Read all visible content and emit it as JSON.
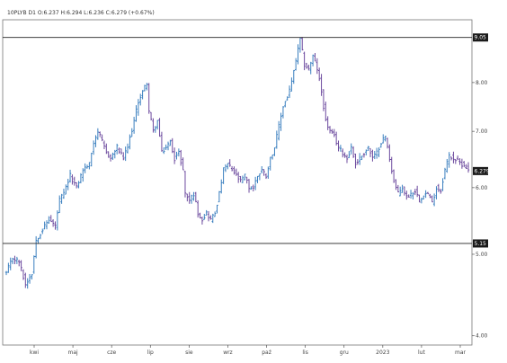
{
  "ohlc_label": "10PLYB D1 O:6.237 H:6.294 L:6.236 C:6.279 (+0.67%)",
  "colors": {
    "up": "#3a7fbf",
    "down": "#6c4a9e",
    "tag_bg": "#1a1a1a",
    "axis": "#555555"
  },
  "chart_data": {
    "type": "ohlc",
    "title": "",
    "xlabel": "",
    "ylabel": "",
    "scale": "log",
    "ylim": [
      3.9,
      9.5
    ],
    "y_ticks": [
      {
        "value": 4.0,
        "label": "4.00"
      },
      {
        "value": 5.0,
        "label": "5.00"
      },
      {
        "value": 6.0,
        "label": "6.00"
      },
      {
        "value": 7.0,
        "label": "7.00"
      },
      {
        "value": 8.0,
        "label": "8.00"
      }
    ],
    "x_ticks": [
      "kwi",
      "maj",
      "cze",
      "lip",
      "sie",
      "wrz",
      "paź",
      "lis",
      "gru",
      "2023",
      "lut",
      "mar"
    ],
    "horizontal_lines": [
      {
        "value": 9.05,
        "label": "9.05"
      },
      {
        "value": 5.15,
        "label": "5.15"
      }
    ],
    "last_price": {
      "value": 6.279,
      "label": "6.279"
    },
    "grid": false,
    "legend": "none",
    "series": [
      {
        "close_path": [
          [
            0,
            4.75
          ],
          [
            3,
            4.95
          ],
          [
            6,
            4.9
          ],
          [
            9,
            4.6
          ],
          [
            12,
            4.75
          ],
          [
            14,
            5.2
          ],
          [
            17,
            5.35
          ],
          [
            20,
            5.5
          ],
          [
            23,
            5.4
          ],
          [
            25,
            5.8
          ],
          [
            27,
            5.9
          ],
          [
            30,
            6.2
          ],
          [
            33,
            6.0
          ],
          [
            36,
            6.3
          ],
          [
            39,
            6.4
          ],
          [
            41,
            6.8
          ],
          [
            43,
            7.0
          ],
          [
            45,
            6.8
          ],
          [
            47,
            6.6
          ],
          [
            49,
            6.5
          ],
          [
            52,
            6.7
          ],
          [
            55,
            6.5
          ],
          [
            57,
            6.7
          ],
          [
            60,
            7.2
          ],
          [
            62,
            7.6
          ],
          [
            64,
            7.8
          ],
          [
            66,
            8.0
          ],
          [
            67,
            7.4
          ],
          [
            69,
            7.0
          ],
          [
            71,
            7.2
          ],
          [
            73,
            6.6
          ],
          [
            75,
            6.7
          ],
          [
            77,
            6.8
          ],
          [
            79,
            6.5
          ],
          [
            81,
            6.6
          ],
          [
            83,
            6.3
          ],
          [
            84,
            5.9
          ],
          [
            86,
            5.8
          ],
          [
            88,
            5.9
          ],
          [
            90,
            5.6
          ],
          [
            92,
            5.5
          ],
          [
            94,
            5.6
          ],
          [
            96,
            5.5
          ],
          [
            98,
            5.6
          ],
          [
            100,
            5.9
          ],
          [
            102,
            6.3
          ],
          [
            104,
            6.4
          ],
          [
            106,
            6.3
          ],
          [
            108,
            6.2
          ],
          [
            110,
            6.1
          ],
          [
            112,
            6.2
          ],
          [
            114,
            6.0
          ],
          [
            116,
            6.0
          ],
          [
            118,
            6.2
          ],
          [
            120,
            6.3
          ],
          [
            122,
            6.2
          ],
          [
            124,
            6.5
          ],
          [
            126,
            6.7
          ],
          [
            128,
            7.1
          ],
          [
            130,
            7.5
          ],
          [
            132,
            7.7
          ],
          [
            134,
            8.0
          ],
          [
            136,
            8.5
          ],
          [
            138,
            9.0
          ],
          [
            140,
            8.4
          ],
          [
            142,
            8.3
          ],
          [
            144,
            8.6
          ],
          [
            146,
            8.3
          ],
          [
            148,
            7.8
          ],
          [
            150,
            7.2
          ],
          [
            152,
            7.0
          ],
          [
            154,
            6.9
          ],
          [
            156,
            6.7
          ],
          [
            158,
            6.6
          ],
          [
            160,
            6.5
          ],
          [
            162,
            6.7
          ],
          [
            164,
            6.4
          ],
          [
            166,
            6.5
          ],
          [
            168,
            6.6
          ],
          [
            170,
            6.7
          ],
          [
            172,
            6.5
          ],
          [
            174,
            6.6
          ],
          [
            176,
            6.8
          ],
          [
            178,
            6.9
          ],
          [
            180,
            6.5
          ],
          [
            182,
            6.1
          ],
          [
            184,
            5.9
          ],
          [
            186,
            6.0
          ],
          [
            188,
            5.85
          ],
          [
            190,
            5.9
          ],
          [
            192,
            5.95
          ],
          [
            194,
            5.8
          ],
          [
            196,
            5.9
          ],
          [
            198,
            5.9
          ],
          [
            200,
            5.75
          ],
          [
            202,
            6.0
          ],
          [
            204,
            5.95
          ],
          [
            206,
            6.3
          ],
          [
            208,
            6.55
          ],
          [
            210,
            6.5
          ],
          [
            212,
            6.45
          ],
          [
            214,
            6.4
          ],
          [
            216,
            6.35
          ],
          [
            217,
            6.279
          ]
        ]
      }
    ]
  }
}
